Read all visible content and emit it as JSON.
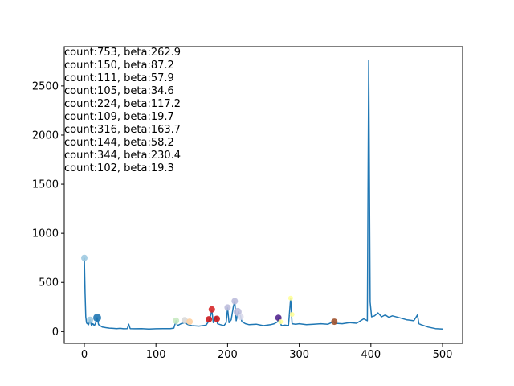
{
  "chart_data": {
    "type": "line",
    "xlim": [
      -28,
      528
    ],
    "ylim": [
      -120,
      2900
    ],
    "xticks": [
      0,
      100,
      200,
      300,
      400,
      500
    ],
    "yticks": [
      0,
      500,
      1000,
      1500,
      2000,
      2500
    ],
    "xtick_labels": [
      "0",
      "100",
      "200",
      "300",
      "400",
      "500"
    ],
    "ytick_labels": [
      "0",
      "500",
      "1000",
      "1500",
      "2000",
      "2500"
    ],
    "line_color": "#1f77b4",
    "grid": false,
    "annotations": [
      "count:753, beta:262.9",
      "count:150, beta:87.2",
      "count:111, beta:57.9",
      "count:105, beta:34.6",
      "count:224, beta:117.2",
      "count:109, beta:19.7",
      "count:316, beta:163.7",
      "count:144, beta:58.2",
      "count:344, beta:230.4",
      "count:102, beta:19.3"
    ],
    "series": [
      {
        "values": [
          [
            0,
            750
          ],
          [
            1,
            400
          ],
          [
            2,
            150
          ],
          [
            3,
            90
          ],
          [
            4,
            80
          ],
          [
            5,
            85
          ],
          [
            6,
            70
          ],
          [
            8,
            120
          ],
          [
            10,
            60
          ],
          [
            12,
            80
          ],
          [
            14,
            60
          ],
          [
            16,
            90
          ],
          [
            18,
            140
          ],
          [
            20,
            70
          ],
          [
            25,
            45
          ],
          [
            30,
            40
          ],
          [
            35,
            35
          ],
          [
            40,
            32
          ],
          [
            45,
            30
          ],
          [
            50,
            32
          ],
          [
            55,
            28
          ],
          [
            60,
            30
          ],
          [
            62,
            75
          ],
          [
            64,
            30
          ],
          [
            70,
            28
          ],
          [
            80,
            30
          ],
          [
            90,
            25
          ],
          [
            100,
            28
          ],
          [
            110,
            30
          ],
          [
            120,
            30
          ],
          [
            125,
            35
          ],
          [
            128,
            110
          ],
          [
            130,
            60
          ],
          [
            135,
            80
          ],
          [
            140,
            90
          ],
          [
            145,
            70
          ],
          [
            150,
            60
          ],
          [
            160,
            55
          ],
          [
            170,
            65
          ],
          [
            175,
            120
          ],
          [
            178,
            220
          ],
          [
            180,
            90
          ],
          [
            184,
            150
          ],
          [
            186,
            80
          ],
          [
            190,
            70
          ],
          [
            195,
            60
          ],
          [
            198,
            90
          ],
          [
            200,
            240
          ],
          [
            202,
            90
          ],
          [
            205,
            120
          ],
          [
            208,
            250
          ],
          [
            210,
            310
          ],
          [
            212,
            110
          ],
          [
            215,
            200
          ],
          [
            218,
            160
          ],
          [
            220,
            100
          ],
          [
            225,
            80
          ],
          [
            230,
            70
          ],
          [
            240,
            75
          ],
          [
            250,
            60
          ],
          [
            260,
            70
          ],
          [
            265,
            80
          ],
          [
            270,
            100
          ],
          [
            272,
            150
          ],
          [
            275,
            60
          ],
          [
            280,
            65
          ],
          [
            285,
            60
          ],
          [
            288,
            340
          ],
          [
            290,
            80
          ],
          [
            295,
            75
          ],
          [
            300,
            80
          ],
          [
            310,
            70
          ],
          [
            320,
            75
          ],
          [
            330,
            80
          ],
          [
            340,
            75
          ],
          [
            348,
            100
          ],
          [
            350,
            85
          ],
          [
            360,
            80
          ],
          [
            370,
            90
          ],
          [
            380,
            85
          ],
          [
            390,
            130
          ],
          [
            395,
            110
          ],
          [
            397,
            2760
          ],
          [
            399,
            300
          ],
          [
            401,
            150
          ],
          [
            405,
            160
          ],
          [
            410,
            190
          ],
          [
            415,
            150
          ],
          [
            420,
            170
          ],
          [
            425,
            145
          ],
          [
            430,
            160
          ],
          [
            440,
            140
          ],
          [
            450,
            120
          ],
          [
            460,
            110
          ],
          [
            465,
            170
          ],
          [
            467,
            80
          ],
          [
            470,
            70
          ],
          [
            480,
            45
          ],
          [
            490,
            30
          ],
          [
            500,
            25
          ]
        ]
      }
    ],
    "markers": [
      {
        "x": 0,
        "y": 750,
        "color": "#9ecae1",
        "r": 4
      },
      {
        "x": 8,
        "y": 120,
        "color": "#9ecae1",
        "r": 4
      },
      {
        "x": 18,
        "y": 140,
        "color": "#1f77b4",
        "r": 5
      },
      {
        "x": 128,
        "y": 110,
        "color": "#c7e9c0",
        "r": 4
      },
      {
        "x": 140,
        "y": 115,
        "color": "#d9d9d9",
        "r": 4
      },
      {
        "x": 147,
        "y": 100,
        "color": "#fdd0a2",
        "r": 4
      },
      {
        "x": 174,
        "y": 125,
        "color": "#cb181d",
        "r": 4
      },
      {
        "x": 178,
        "y": 225,
        "color": "#d62728",
        "r": 4
      },
      {
        "x": 185,
        "y": 130,
        "color": "#cb181d",
        "r": 4
      },
      {
        "x": 200,
        "y": 245,
        "color": "#bcbddc",
        "r": 4
      },
      {
        "x": 210,
        "y": 310,
        "color": "#bcbddc",
        "r": 4
      },
      {
        "x": 214,
        "y": 200,
        "color": "#bcbddc",
        "r": 5
      },
      {
        "x": 218,
        "y": 150,
        "color": "#dadaeb",
        "r": 4
      },
      {
        "x": 271,
        "y": 140,
        "color": "#54278f",
        "r": 4
      },
      {
        "x": 274,
        "y": 100,
        "color": "#ffff99",
        "r": 3
      },
      {
        "x": 288,
        "y": 340,
        "color": "#ffff99",
        "r": 3
      },
      {
        "x": 290,
        "y": 175,
        "color": "#ffff99",
        "r": 3
      },
      {
        "x": 349,
        "y": 100,
        "color": "#a0522d",
        "r": 4
      }
    ]
  }
}
